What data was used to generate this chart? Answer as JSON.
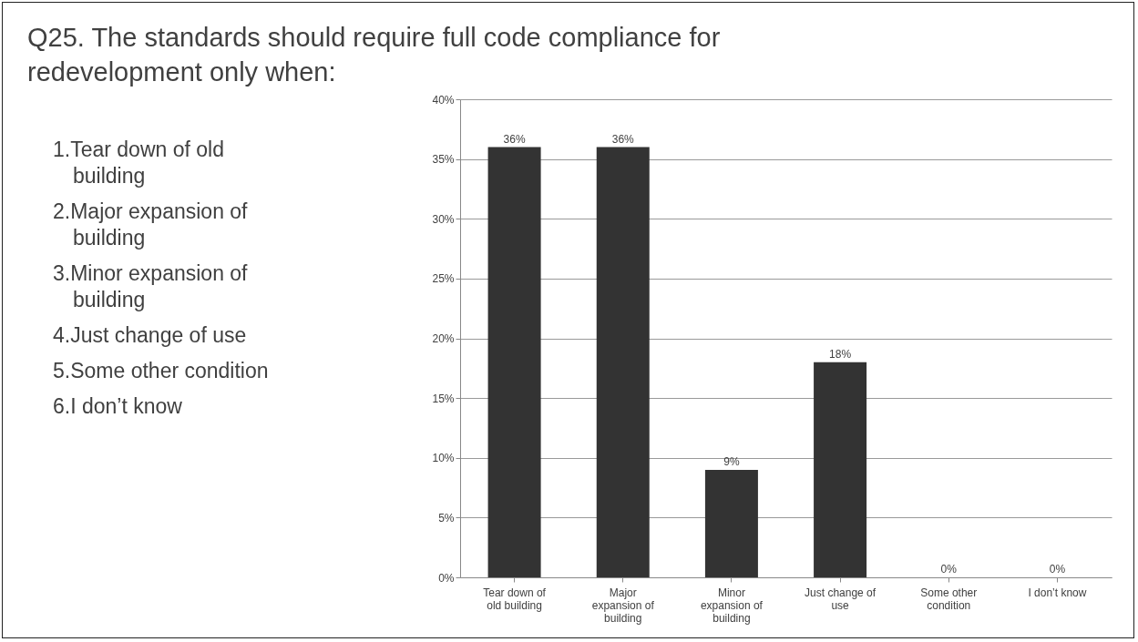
{
  "chart_data": {
    "type": "bar",
    "title": "Q25. The standards should require full code compliance for redevelopment only when:",
    "annotations": [
      "1.Tear down of old building",
      "2.Major expansion of building",
      "3.Minor expansion of building",
      "4.Just change of use",
      "5.Some other condition",
      "6.I don’t know"
    ],
    "categories": [
      "Tear down of old building",
      "Major expansion of building",
      "Minor expansion of building",
      "Just change of use",
      "Some other condition",
      "I don’t know"
    ],
    "values": [
      36,
      36,
      9,
      18,
      0,
      0
    ],
    "value_labels": [
      "36%",
      "36%",
      "9%",
      "18%",
      "0%",
      "0%"
    ],
    "color": "#333333",
    "ylim": [
      0,
      40
    ],
    "yticks": [
      {
        "value": 0,
        "label": "0%"
      },
      {
        "value": 5,
        "label": "5%"
      },
      {
        "value": 10,
        "label": "10%"
      },
      {
        "value": 15,
        "label": "15%"
      },
      {
        "value": 20,
        "label": "20%"
      },
      {
        "value": 25,
        "label": "25%"
      },
      {
        "value": 30,
        "label": "30%"
      },
      {
        "value": 35,
        "label": "35%"
      },
      {
        "value": 40,
        "label": "40%"
      }
    ],
    "grid": "y"
  }
}
